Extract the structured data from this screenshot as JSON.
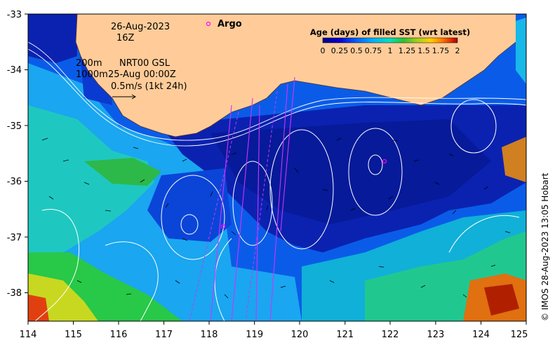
{
  "map": {
    "date": "26-Aug-2023",
    "hour": "16Z",
    "legend_argo": "Argo",
    "depth1": "200m",
    "depth2": "1000m",
    "product": "NRT00 GSL",
    "product_time": "25-Aug 00:00Z",
    "velocity_scale": "0.5m/s (1kt 24h)",
    "colorbar_title": "Age (days) of filled SST (wrt latest)",
    "colorbar_ticks": [
      "0",
      "0.25",
      "0.5",
      "0.75",
      "1",
      "1.25",
      "1.5",
      "1.75",
      "2"
    ],
    "colorbar_colors": [
      "#00008b",
      "#0000d0",
      "#0060ff",
      "#00b0ff",
      "#00e0c0",
      "#30c030",
      "#a0d020",
      "#ffd000",
      "#ff8000",
      "#e03000",
      "#a00000"
    ],
    "credit": "© IMOS 28-Aug-2023 13:05 Hobart",
    "x_ticks": [
      "114",
      "115",
      "116",
      "117",
      "118",
      "119",
      "120",
      "121",
      "122",
      "123",
      "124",
      "125"
    ],
    "y_ticks": [
      "-33",
      "-34",
      "-35",
      "-36",
      "-37",
      "-38"
    ],
    "land_color": "#ffcc99",
    "argo_color": "#ff00ff"
  }
}
